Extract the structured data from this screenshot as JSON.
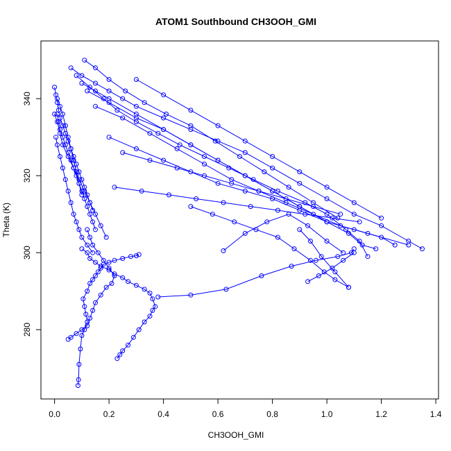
{
  "chart_data": {
    "type": "line",
    "title": "ATOM1 Southbound CH3OOH_GMI",
    "xlabel": "CH3OOH_GMI",
    "ylabel": "Theta (K)",
    "xlim": [
      -0.05,
      1.41
    ],
    "ylim": [
      262,
      355
    ],
    "xticks": [
      0.0,
      0.2,
      0.4,
      0.6,
      0.8,
      1.0,
      1.2,
      1.4
    ],
    "yticks": [
      280,
      300,
      320,
      340
    ],
    "xtick_labels": [
      "0.0",
      "0.2",
      "0.4",
      "0.6",
      "0.8",
      "1.0",
      "1.2",
      "1.4"
    ],
    "ytick_labels": [
      "280",
      "300",
      "320",
      "340"
    ],
    "grid": false,
    "legend": "none",
    "marker": "open-circle",
    "color": "#0000ff",
    "series": [
      {
        "x": [
          0.086,
          0.088,
          0.09,
          0.095,
          0.1,
          0.11,
          0.12,
          0.115,
          0.11,
          0.105,
          0.12,
          0.13,
          0.14,
          0.15,
          0.16,
          0.17,
          0.18,
          0.2,
          0.22,
          0.25,
          0.28,
          0.3,
          0.31
        ],
        "y": [
          265.5,
          267,
          271,
          275,
          278.5,
          280,
          282,
          284,
          286,
          288,
          290,
          292,
          293,
          294,
          295,
          296,
          297,
          297.5,
          298,
          298.5,
          299,
          299.2,
          299.5
        ]
      },
      {
        "x": [
          0.23,
          0.24,
          0.25,
          0.27,
          0.29,
          0.31,
          0.33,
          0.35,
          0.36,
          0.37,
          0.36,
          0.35,
          0.33,
          0.3,
          0.27,
          0.25,
          0.22,
          0.2,
          0.17,
          0.15,
          0.13,
          0.12,
          0.1
        ],
        "y": [
          272.5,
          273.5,
          274.5,
          276,
          278,
          280,
          282,
          283.5,
          285,
          286,
          288,
          289.5,
          290.5,
          291.5,
          292.5,
          293.5,
          294.5,
          295.5,
          296.5,
          297.5,
          298.5,
          300,
          301
        ]
      },
      {
        "x": [
          0.05,
          0.06,
          0.08,
          0.1,
          0.12,
          0.13,
          0.14,
          0.15,
          0.17,
          0.19,
          0.21,
          0.22,
          0.2,
          0.18,
          0.16,
          0.14,
          0.13,
          0.12
        ],
        "y": [
          277.5,
          278,
          279,
          280,
          281,
          283,
          285,
          287,
          289,
          291,
          292,
          294,
          296,
          298,
          300,
          302,
          304,
          306
        ]
      },
      {
        "x": [
          0.38,
          0.5,
          0.63,
          0.76,
          0.87,
          0.96,
          1.04,
          1.09,
          1.1
        ],
        "y": [
          288.5,
          289,
          290.5,
          294,
          296.5,
          298,
          299,
          300,
          301
        ]
      },
      {
        "x": [
          0.15,
          0.14,
          0.13,
          0.12,
          0.11,
          0.1,
          0.09,
          0.08,
          0.07,
          0.06,
          0.05,
          0.04,
          0.03,
          0.02,
          0.015,
          0.01
        ],
        "y": [
          306,
          308,
          310,
          312,
          314,
          316,
          318,
          320,
          322,
          324,
          326,
          328,
          330,
          332,
          334,
          336
        ]
      },
      {
        "x": [
          0.0,
          0.005,
          0.01,
          0.015,
          0.02,
          0.03,
          0.04,
          0.05,
          0.06,
          0.07,
          0.08,
          0.09,
          0.1,
          0.11,
          0.12,
          0.13,
          0.14
        ],
        "y": [
          343,
          341,
          339,
          337,
          335,
          333,
          331,
          329,
          327,
          325,
          323,
          321,
          319,
          317,
          315,
          313,
          311
        ]
      },
      {
        "x": [
          0.005,
          0.01,
          0.02,
          0.03,
          0.04,
          0.05,
          0.06,
          0.07,
          0.08,
          0.09,
          0.1,
          0.12,
          0.14
        ],
        "y": [
          330,
          328,
          325,
          322,
          319,
          316,
          313,
          310,
          308,
          306,
          304,
          302,
          300
        ]
      },
      {
        "x": [
          0.01,
          0.02,
          0.03,
          0.04,
          0.05,
          0.06,
          0.07,
          0.08,
          0.09,
          0.1
        ],
        "y": [
          340,
          338,
          336,
          333,
          330,
          327,
          324,
          321,
          318,
          315
        ]
      },
      {
        "x": [
          0.0,
          0.01,
          0.02,
          0.03,
          0.05,
          0.07,
          0.09,
          0.11,
          0.13,
          0.15,
          0.17,
          0.19
        ],
        "y": [
          336,
          334,
          331,
          328,
          325,
          322,
          319,
          316,
          313,
          310,
          307,
          304
        ]
      },
      {
        "x": [
          0.06,
          0.1,
          0.15,
          0.2,
          0.25,
          0.3,
          0.4,
          0.5,
          0.6,
          0.7,
          0.8,
          0.9,
          1.0,
          1.1,
          1.2,
          1.3,
          1.35
        ],
        "y": [
          348,
          346,
          344,
          342,
          340,
          338,
          335,
          332,
          329,
          326,
          322,
          318,
          314,
          310,
          307,
          303,
          301
        ]
      },
      {
        "x": [
          0.1,
          0.15,
          0.2,
          0.3,
          0.4,
          0.5,
          0.6,
          0.7,
          0.8,
          0.9,
          1.0,
          1.08,
          1.13,
          1.18
        ],
        "y": [
          344,
          342,
          340,
          336,
          332,
          328,
          324,
          320,
          316,
          312,
          308,
          305,
          302,
          301
        ]
      },
      {
        "x": [
          0.15,
          0.25,
          0.35,
          0.45,
          0.55,
          0.65,
          0.75,
          0.85,
          0.95,
          1.05,
          1.15,
          1.3
        ],
        "y": [
          338,
          335,
          331,
          327,
          323,
          319,
          316,
          313,
          310,
          307,
          305,
          302
        ]
      },
      {
        "x": [
          0.2,
          0.3,
          0.4,
          0.5,
          0.6,
          0.7,
          0.8,
          0.9,
          1.0,
          1.1,
          1.2,
          1.25
        ],
        "y": [
          330,
          327,
          324,
          321,
          318,
          316,
          314,
          311,
          308,
          306,
          304,
          302
        ]
      },
      {
        "x": [
          0.12,
          0.2,
          0.3,
          0.4,
          0.5,
          0.6,
          0.7,
          0.8,
          0.9,
          1.0
        ],
        "y": [
          342,
          339,
          335,
          332,
          328,
          324,
          320,
          316,
          312,
          308
        ]
      },
      {
        "x": [
          0.08,
          0.13,
          0.18,
          0.23,
          0.3,
          0.38,
          0.46,
          0.55,
          0.64,
          0.73,
          0.82,
          0.92,
          1.0,
          1.07,
          1.12,
          1.15
        ],
        "y": [
          346,
          343,
          340,
          337,
          334,
          331,
          328,
          325,
          322,
          319,
          316,
          313,
          310,
          306,
          303,
          299
        ]
      },
      {
        "x": [
          0.3,
          0.4,
          0.5,
          0.6,
          0.7,
          0.8,
          0.9,
          1.0,
          1.1,
          1.2
        ],
        "y": [
          345,
          341,
          337,
          333,
          329,
          325,
          321,
          317,
          313,
          309
        ]
      },
      {
        "x": [
          0.25,
          0.35,
          0.45,
          0.55,
          0.65,
          0.75,
          0.85,
          0.95,
          1.05
        ],
        "y": [
          326,
          324,
          322,
          320,
          318,
          316,
          314,
          312,
          310
        ]
      },
      {
        "x": [
          0.11,
          0.15,
          0.2,
          0.26,
          0.33,
          0.41,
          0.5,
          0.59,
          0.68,
          0.77,
          0.86,
          0.95,
          1.04
        ],
        "y": [
          350,
          348,
          345,
          342,
          339,
          336,
          333,
          329,
          325,
          321,
          317,
          313,
          309
        ]
      },
      {
        "x": [
          0.22,
          0.32,
          0.42,
          0.52,
          0.62,
          0.72,
          0.82,
          0.92,
          1.02,
          1.12
        ],
        "y": [
          317,
          316,
          315,
          314,
          313,
          312,
          311,
          310,
          309,
          308
        ]
      },
      {
        "x": [
          0.62,
          0.7,
          0.78,
          0.86,
          0.93,
          1.0,
          1.06
        ],
        "y": [
          300.5,
          305,
          308,
          310,
          307,
          303,
          300
        ]
      },
      {
        "x": [
          0.93,
          0.97,
          1.02,
          1.06,
          1.1
        ],
        "y": [
          292.5,
          294,
          296,
          298,
          300
        ]
      },
      {
        "x": [
          0.9,
          0.94,
          0.98,
          1.03,
          1.08
        ],
        "y": [
          306,
          303,
          299,
          295,
          291
        ]
      },
      {
        "x": [
          0.5,
          0.58,
          0.66,
          0.74,
          0.82,
          0.88,
          0.94,
          0.99,
          1.03,
          1.08
        ],
        "y": [
          312,
          310,
          308,
          306,
          304,
          301,
          298,
          295,
          293,
          291
        ]
      }
    ]
  }
}
